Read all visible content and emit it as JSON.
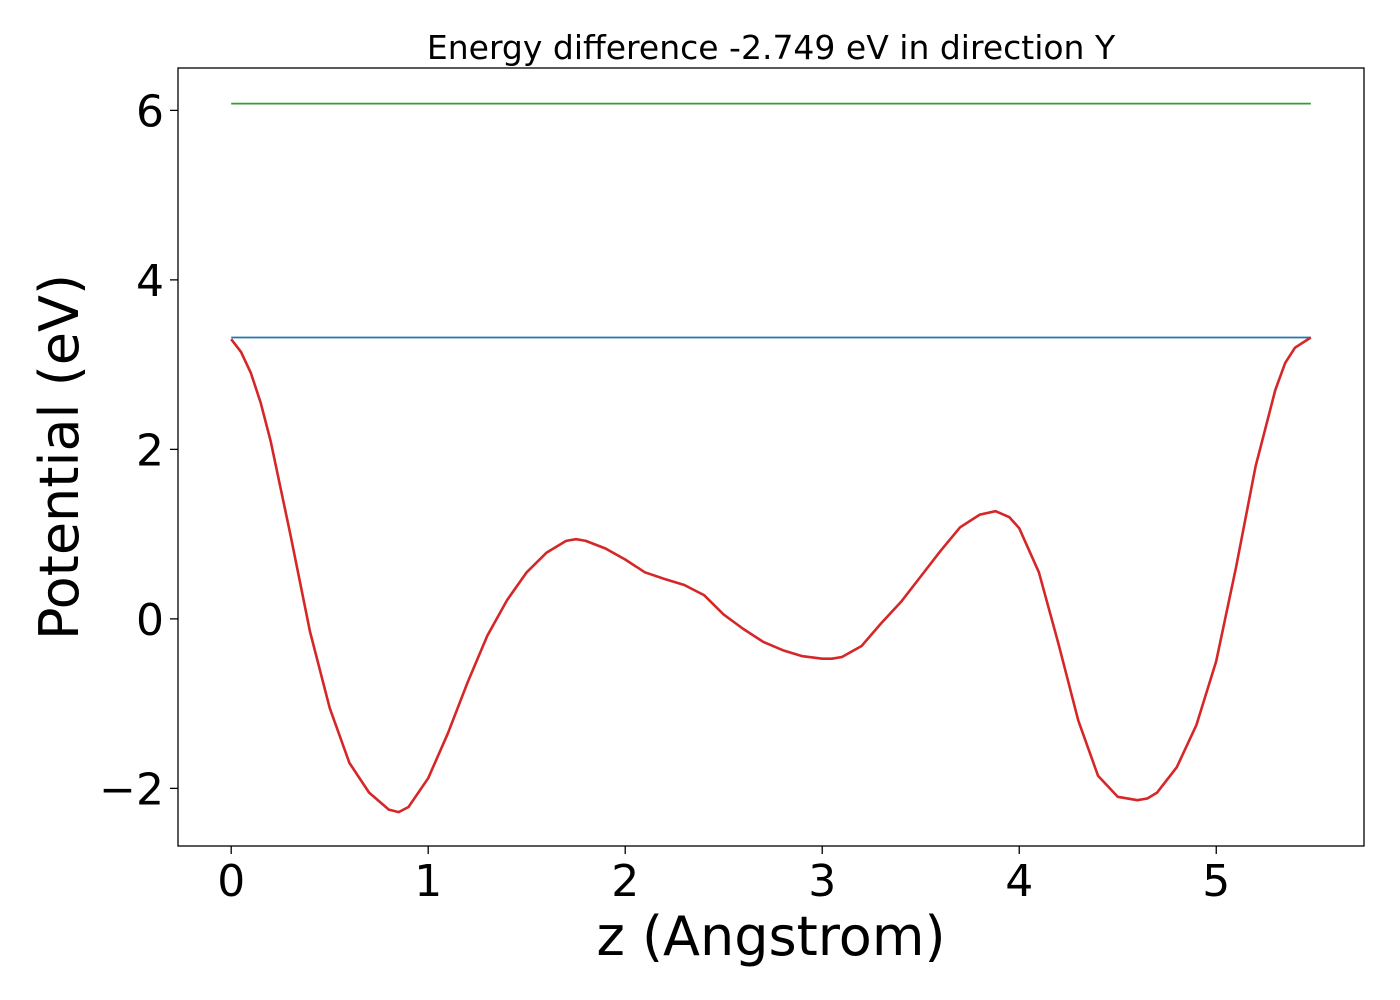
{
  "chart_data": {
    "type": "line",
    "title": "Energy difference -2.749 eV in direction Y",
    "xlabel": "z (Angstrom)",
    "ylabel": "Potential (eV)",
    "xlim": [
      -0.27,
      5.75
    ],
    "ylim": [
      -2.68,
      6.5
    ],
    "xticks": [
      0,
      1,
      2,
      3,
      4,
      5
    ],
    "xtick_labels": [
      "0",
      "1",
      "2",
      "3",
      "4",
      "5"
    ],
    "yticks": [
      -2,
      0,
      2,
      4,
      6
    ],
    "ytick_labels": [
      "−2",
      "0",
      "2",
      "4",
      "6"
    ],
    "grid": false,
    "series": [
      {
        "color": "#2ca02c",
        "x": [
          0,
          5.48
        ],
        "y": [
          6.08,
          6.08
        ]
      },
      {
        "color": "#1f77b4",
        "x": [
          0,
          5.48
        ],
        "y": [
          3.32,
          3.32
        ]
      },
      {
        "color": "#d62728",
        "x": [
          0,
          0.05,
          0.1,
          0.15,
          0.2,
          0.3,
          0.4,
          0.5,
          0.6,
          0.7,
          0.8,
          0.85,
          0.9,
          1.0,
          1.1,
          1.2,
          1.3,
          1.4,
          1.5,
          1.6,
          1.7,
          1.75,
          1.8,
          1.9,
          2.0,
          2.1,
          2.2,
          2.3,
          2.4,
          2.5,
          2.6,
          2.7,
          2.8,
          2.9,
          3.0,
          3.05,
          3.1,
          3.2,
          3.3,
          3.4,
          3.5,
          3.6,
          3.7,
          3.8,
          3.88,
          3.95,
          4.0,
          4.1,
          4.2,
          4.3,
          4.4,
          4.5,
          4.6,
          4.65,
          4.7,
          4.8,
          4.9,
          5.0,
          5.1,
          5.2,
          5.3,
          5.35,
          5.4,
          5.48
        ],
        "y": [
          3.3,
          3.15,
          2.9,
          2.55,
          2.1,
          1.0,
          -0.15,
          -1.05,
          -1.7,
          -2.05,
          -2.25,
          -2.28,
          -2.22,
          -1.88,
          -1.35,
          -0.75,
          -0.2,
          0.22,
          0.55,
          0.78,
          0.92,
          0.94,
          0.92,
          0.83,
          0.7,
          0.55,
          0.47,
          0.4,
          0.28,
          0.05,
          -0.12,
          -0.27,
          -0.37,
          -0.44,
          -0.47,
          -0.47,
          -0.45,
          -0.32,
          -0.05,
          0.2,
          0.5,
          0.8,
          1.08,
          1.23,
          1.27,
          1.2,
          1.07,
          0.55,
          -0.3,
          -1.2,
          -1.85,
          -2.1,
          -2.14,
          -2.12,
          -2.05,
          -1.75,
          -1.25,
          -0.5,
          0.6,
          1.8,
          2.7,
          3.02,
          3.2,
          3.32
        ]
      }
    ]
  }
}
